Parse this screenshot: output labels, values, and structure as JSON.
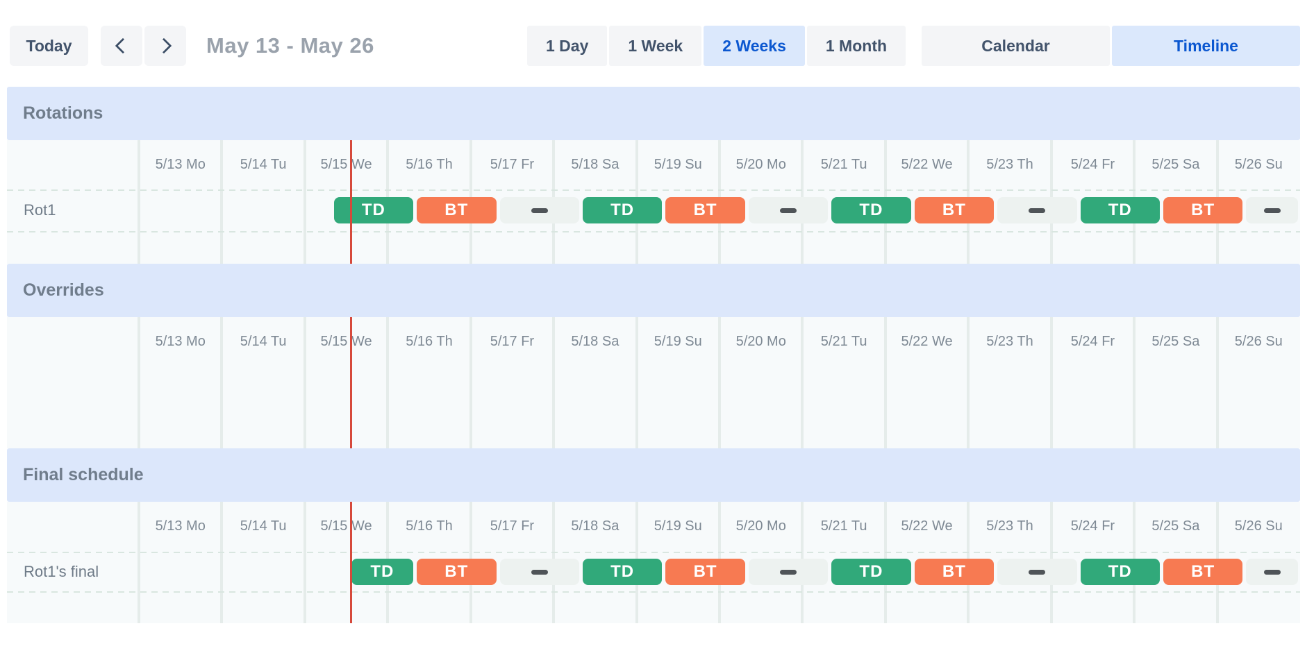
{
  "toolbar": {
    "today_label": "Today",
    "title": "May 13 - May 26",
    "range_buttons": [
      {
        "label": "1 Day",
        "active": false
      },
      {
        "label": "1 Week",
        "active": false
      },
      {
        "label": "2 Weeks",
        "active": true
      },
      {
        "label": "1 Month",
        "active": false
      }
    ],
    "view_buttons": [
      {
        "label": "Calendar",
        "active": false
      },
      {
        "label": "Timeline",
        "active": true
      }
    ]
  },
  "colors": {
    "shift_td": "#31a97a",
    "shift_bt": "#f77a52",
    "gap_strip": "#edf2f0",
    "gap_dash": "#4f5458",
    "now_line": "#d6493b",
    "section_header_bg": "#dce7fb",
    "active_button_bg": "#dbe8fc",
    "active_button_text": "#0b57d0",
    "button_bg": "#f4f5f7",
    "button_text": "#42536b"
  },
  "timeline": {
    "columns": [
      "5/13 Mo",
      "5/14 Tu",
      "5/15 We",
      "5/16 Th",
      "5/17 Fr",
      "5/18 Sa",
      "5/19 Su",
      "5/20 Mo",
      "5/21 Tu",
      "5/22 We",
      "5/23 Th",
      "5/24 Fr",
      "5/25 Sa",
      "5/26 Su"
    ],
    "now_day_offset": 2.5417,
    "sections": [
      {
        "title": "Rotations",
        "rows": [
          {
            "label": "Rot1",
            "segments": [
              {
                "kind": "shift",
                "label": "TD",
                "color": "shift_td",
                "start": 2.3333,
                "end": 3.3333
              },
              {
                "kind": "shift",
                "label": "BT",
                "color": "shift_bt",
                "start": 3.3333,
                "end": 4.3333
              },
              {
                "kind": "gap",
                "start": 4.3333,
                "end": 5.3333
              },
              {
                "kind": "shift",
                "label": "TD",
                "color": "shift_td",
                "start": 5.3333,
                "end": 6.3333
              },
              {
                "kind": "shift",
                "label": "BT",
                "color": "shift_bt",
                "start": 6.3333,
                "end": 7.3333
              },
              {
                "kind": "gap",
                "start": 7.3333,
                "end": 8.3333
              },
              {
                "kind": "shift",
                "label": "TD",
                "color": "shift_td",
                "start": 8.3333,
                "end": 9.3333
              },
              {
                "kind": "shift",
                "label": "BT",
                "color": "shift_bt",
                "start": 9.3333,
                "end": 10.3333
              },
              {
                "kind": "gap",
                "start": 10.3333,
                "end": 11.3333
              },
              {
                "kind": "shift",
                "label": "TD",
                "color": "shift_td",
                "start": 11.3333,
                "end": 12.3333
              },
              {
                "kind": "shift",
                "label": "BT",
                "color": "shift_bt",
                "start": 12.3333,
                "end": 13.3333
              },
              {
                "kind": "gap",
                "start": 13.3333,
                "end": 14
              }
            ]
          }
        ]
      },
      {
        "title": "Overrides",
        "rows": []
      },
      {
        "title": "Final schedule",
        "rows": [
          {
            "label": "Rot1's final",
            "segments": [
              {
                "kind": "shift",
                "label": "TD",
                "color": "shift_td",
                "start": 2.5417,
                "end": 3.3333
              },
              {
                "kind": "shift",
                "label": "BT",
                "color": "shift_bt",
                "start": 3.3333,
                "end": 4.3333
              },
              {
                "kind": "gap",
                "start": 4.3333,
                "end": 5.3333
              },
              {
                "kind": "shift",
                "label": "TD",
                "color": "shift_td",
                "start": 5.3333,
                "end": 6.3333
              },
              {
                "kind": "shift",
                "label": "BT",
                "color": "shift_bt",
                "start": 6.3333,
                "end": 7.3333
              },
              {
                "kind": "gap",
                "start": 7.3333,
                "end": 8.3333
              },
              {
                "kind": "shift",
                "label": "TD",
                "color": "shift_td",
                "start": 8.3333,
                "end": 9.3333
              },
              {
                "kind": "shift",
                "label": "BT",
                "color": "shift_bt",
                "start": 9.3333,
                "end": 10.3333
              },
              {
                "kind": "gap",
                "start": 10.3333,
                "end": 11.3333
              },
              {
                "kind": "shift",
                "label": "TD",
                "color": "shift_td",
                "start": 11.3333,
                "end": 12.3333
              },
              {
                "kind": "shift",
                "label": "BT",
                "color": "shift_bt",
                "start": 12.3333,
                "end": 13.3333
              },
              {
                "kind": "gap",
                "start": 13.3333,
                "end": 14
              }
            ]
          }
        ]
      }
    ]
  }
}
